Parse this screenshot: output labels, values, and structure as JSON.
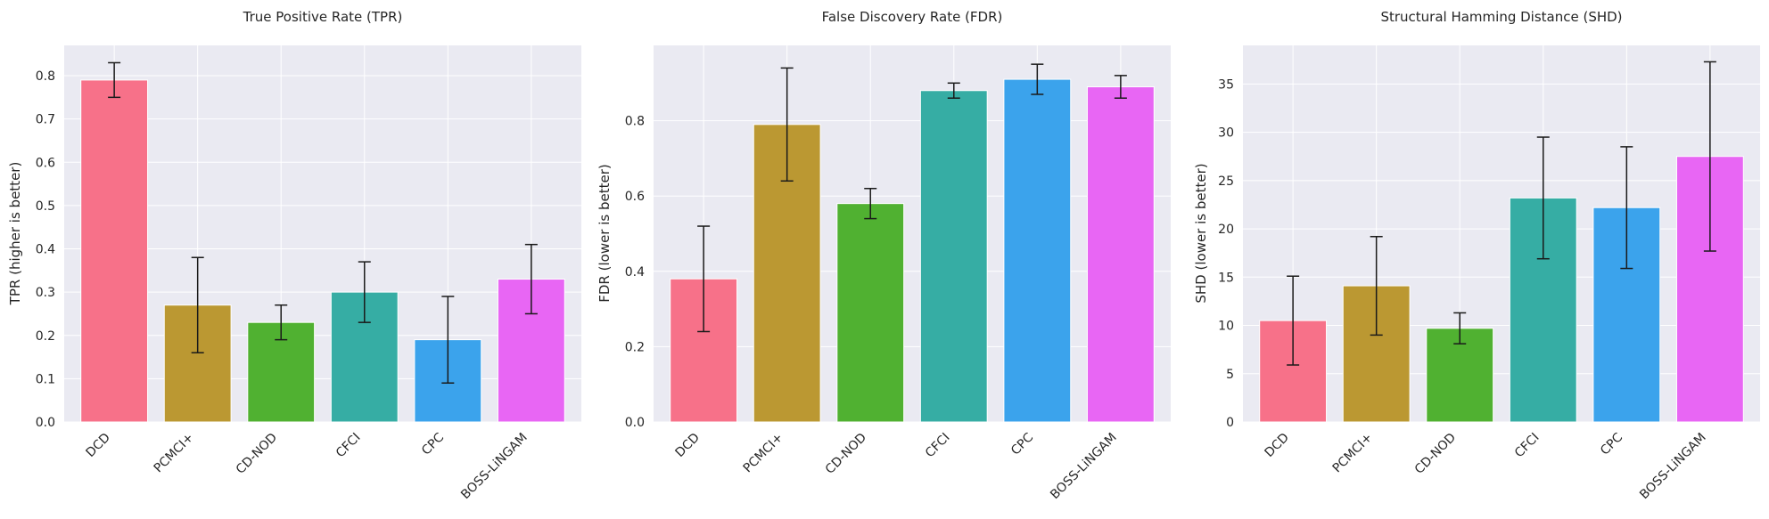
{
  "colors": {
    "background": "#eaeaf2",
    "grid": "#ffffff",
    "errorbar": "#1a1a1a",
    "bars": [
      "#f77189",
      "#bb9832",
      "#50b131",
      "#36ada4",
      "#3ba3ec",
      "#e866f4"
    ]
  },
  "chart_data": [
    {
      "type": "bar",
      "title": "True Positive Rate (TPR)",
      "xlabel": "",
      "ylabel": "TPR (higher is better)",
      "categories": [
        "DCD",
        "PCMCI+",
        "CD-NOD",
        "CFCI",
        "CPC",
        "BOSS-LiNGAM"
      ],
      "values": [
        0.79,
        0.27,
        0.23,
        0.3,
        0.19,
        0.33
      ],
      "errors": [
        0.04,
        0.11,
        0.04,
        0.07,
        0.1,
        0.08
      ],
      "ylim": [
        0,
        0.87
      ],
      "yticks": [
        0.0,
        0.1,
        0.2,
        0.3,
        0.4,
        0.5,
        0.6,
        0.7,
        0.8
      ],
      "ytick_labels": [
        "0.0",
        "0.1",
        "0.2",
        "0.3",
        "0.4",
        "0.5",
        "0.6",
        "0.7",
        "0.8"
      ],
      "grid": true
    },
    {
      "type": "bar",
      "title": "False Discovery Rate (FDR)",
      "xlabel": "",
      "ylabel": "FDR (lower is better)",
      "categories": [
        "DCD",
        "PCMCI+",
        "CD-NOD",
        "CFCI",
        "CPC",
        "BOSS-LiNGAM"
      ],
      "values": [
        0.38,
        0.79,
        0.58,
        0.88,
        0.91,
        0.89
      ],
      "errors": [
        0.14,
        0.15,
        0.04,
        0.02,
        0.04,
        0.03
      ],
      "ylim": [
        0,
        1.0
      ],
      "yticks": [
        0.0,
        0.2,
        0.4,
        0.6,
        0.8
      ],
      "ytick_labels": [
        "0.0",
        "0.2",
        "0.4",
        "0.6",
        "0.8"
      ],
      "grid": true
    },
    {
      "type": "bar",
      "title": "Structural Hamming Distance (SHD)",
      "xlabel": "",
      "ylabel": "SHD (lower is better)",
      "categories": [
        "DCD",
        "PCMCI+",
        "CD-NOD",
        "CFCI",
        "CPC",
        "BOSS-LiNGAM"
      ],
      "values": [
        10.5,
        14.1,
        9.7,
        23.2,
        22.2,
        27.5
      ],
      "errors": [
        4.6,
        5.1,
        1.6,
        6.3,
        6.3,
        9.8
      ],
      "ylim": [
        0,
        39
      ],
      "yticks": [
        0,
        5,
        10,
        15,
        20,
        25,
        30,
        35
      ],
      "ytick_labels": [
        "0",
        "5",
        "10",
        "15",
        "20",
        "25",
        "30",
        "35"
      ],
      "grid": true
    }
  ]
}
